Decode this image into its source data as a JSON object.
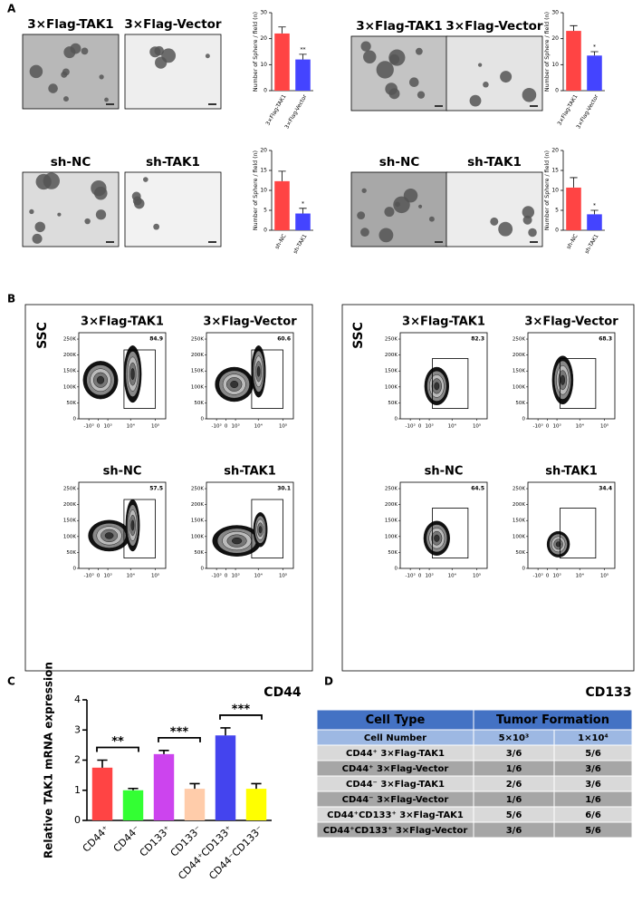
{
  "panel_labels": [
    "A",
    "B",
    "C",
    "D"
  ],
  "sphere_images": [
    {
      "labels": [
        "3×Flag-TAK1",
        "3×Flag-Vector"
      ]
    },
    {
      "labels": [
        "3×Flag-TAK1",
        "3×Flag-Vector"
      ]
    },
    {
      "labels": [
        "sh-NC",
        "sh-TAK1"
      ]
    },
    {
      "labels": [
        "sh-NC",
        "sh-TAK1"
      ]
    }
  ],
  "chart_data": [
    {
      "type": "bar",
      "ylabel": "Number of Sphere / field (n)",
      "categories": [
        "3×Flag-TAK1",
        "3×Flag-Vector"
      ],
      "values": [
        22,
        12
      ],
      "errors": [
        2.5,
        2
      ],
      "colors": [
        "#ff4444",
        "#4444ff"
      ],
      "ylim": [
        0,
        30
      ],
      "yticks": [
        0,
        10,
        20,
        30
      ],
      "significance": "**"
    },
    {
      "type": "bar",
      "ylabel": "Number of Sphere / field (n)",
      "categories": [
        "3×Flag-TAK1",
        "3×Flag-Vector"
      ],
      "values": [
        23,
        13.5
      ],
      "errors": [
        2,
        1.5
      ],
      "colors": [
        "#ff4444",
        "#4444ff"
      ],
      "ylim": [
        0,
        30
      ],
      "yticks": [
        0,
        10,
        20,
        30
      ],
      "significance": "*"
    },
    {
      "type": "bar",
      "ylabel": "Number of Sphere / field (n)",
      "categories": [
        "sh-NC",
        "sh-TAK1"
      ],
      "values": [
        12.3,
        4.2
      ],
      "errors": [
        2.5,
        1.3
      ],
      "colors": [
        "#ff4444",
        "#4444ff"
      ],
      "ylim": [
        0,
        20
      ],
      "yticks": [
        0,
        5,
        10,
        15,
        20
      ],
      "significance": "*"
    },
    {
      "type": "bar",
      "ylabel": "Number of Sphere / field (n)",
      "categories": [
        "sh-NC",
        "sh-TAK1"
      ],
      "values": [
        10.7,
        4
      ],
      "errors": [
        2.5,
        1
      ],
      "colors": [
        "#ff4444",
        "#4444ff"
      ],
      "ylim": [
        0,
        20
      ],
      "yticks": [
        0,
        5,
        10,
        15,
        20
      ],
      "significance": "*"
    },
    {
      "type": "bar",
      "ylabel": "Relative TAK1 mRNA expression",
      "categories": [
        "CD44⁺",
        "CD44⁻",
        "CD133⁺",
        "CD133⁻",
        "CD44⁺CD133⁺",
        "CD44⁻CD133⁻"
      ],
      "values": [
        1.75,
        1.0,
        2.2,
        1.05,
        2.82,
        1.05
      ],
      "errors": [
        0.25,
        0.06,
        0.12,
        0.17,
        0.25,
        0.17
      ],
      "colors": [
        "#ff4444",
        "#33ff33",
        "#cc44ee",
        "#ffccaa",
        "#4444ee",
        "#ffff00"
      ],
      "ylim": [
        0,
        4
      ],
      "yticks": [
        0,
        1,
        2,
        3,
        4
      ],
      "brackets": [
        {
          "bars": [
            0,
            1
          ],
          "label": "**"
        },
        {
          "bars": [
            2,
            3
          ],
          "label": "***"
        },
        {
          "bars": [
            4,
            5
          ],
          "label": "***"
        }
      ]
    }
  ],
  "flow": {
    "y_label": "SSC",
    "ylim": [
      0,
      270000
    ],
    "yticks": [
      0,
      {
        "value": 50000,
        "label": "50K"
      },
      {
        "value": 100000,
        "label": "100K"
      },
      {
        "value": 150000,
        "label": "150K"
      },
      {
        "value": 200000,
        "label": "200K"
      },
      {
        "value": 250000,
        "label": "250K"
      }
    ],
    "xscale": "biexponential",
    "xlim": [
      -3000,
      262144
    ],
    "xticks": [
      {
        "value": -1000,
        "label": "-10³"
      },
      0,
      {
        "value": 1000,
        "label": "10³"
      },
      {
        "value": 10000,
        "label": "10⁴"
      },
      {
        "value": 100000,
        "label": "10⁵"
      }
    ],
    "sets": [
      {
        "x_label": "CD44",
        "plots": [
          {
            "title": "3×Flag-TAK1",
            "gate_percent": 84.9
          },
          {
            "title": "3×Flag-Vector",
            "gate_percent": 60.6
          },
          {
            "title": "sh-NC",
            "gate_percent": 57.5
          },
          {
            "title": "sh-TAK1",
            "gate_percent": 30.1
          }
        ]
      },
      {
        "x_label": "CD133",
        "plots": [
          {
            "title": "3×Flag-TAK1",
            "gate_percent": 82.3
          },
          {
            "title": "3×Flag-Vector",
            "gate_percent": 68.3
          },
          {
            "title": "sh-NC",
            "gate_percent": 64.5
          },
          {
            "title": "sh-TAK1",
            "gate_percent": 34.4
          }
        ]
      }
    ]
  },
  "table": {
    "header": [
      "Cell Type",
      "Tumor Formation"
    ],
    "subheader": [
      "Cell Number",
      "5×10³",
      "1×10⁴"
    ],
    "rows": [
      [
        "CD44⁺ 3×Flag-TAK1",
        "3/6",
        "5/6"
      ],
      [
        "CD44⁺ 3×Flag-Vector",
        "1/6",
        "3/6"
      ],
      [
        "CD44⁻ 3×Flag-TAK1",
        "2/6",
        "3/6"
      ],
      [
        "CD44⁻ 3×Flag-Vector",
        "1/6",
        "1/6"
      ],
      [
        "CD44⁺CD133⁺ 3×Flag-TAK1",
        "5/6",
        "6/6"
      ],
      [
        "CD44⁺CD133⁺ 3×Flag-Vector",
        "3/6",
        "5/6"
      ]
    ]
  }
}
